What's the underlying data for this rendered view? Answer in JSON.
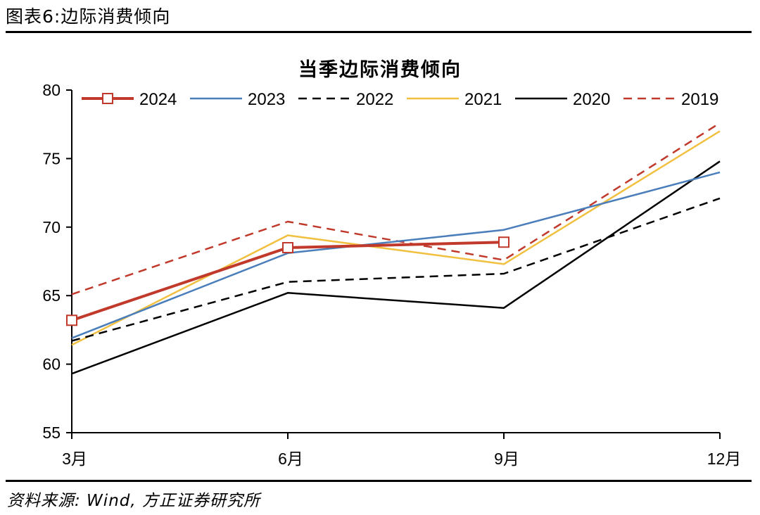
{
  "header": {
    "figure_label": "图表6:边际消费倾向"
  },
  "footer": {
    "source": "资料来源: Wind, 方正证券研究所"
  },
  "colors": {
    "c2024": "#c0392b",
    "c2023": "#4a7ebb",
    "c2022": "#000000",
    "c2021": "#f2c040",
    "c2020": "#000000",
    "c2019": "#c0392b"
  },
  "chart_data": {
    "type": "line",
    "title": "当季边际消费倾向",
    "categories": [
      "3月",
      "6月",
      "9月",
      "12月"
    ],
    "ylim": [
      55,
      80
    ],
    "yticks": [
      55,
      60,
      65,
      70,
      75,
      80
    ],
    "legend_position": "top",
    "grid": false,
    "series": [
      {
        "name": "2024",
        "values": [
          63.2,
          68.5,
          68.9,
          null
        ],
        "style": "solid",
        "marker": "square",
        "color_key": "c2024"
      },
      {
        "name": "2023",
        "values": [
          61.9,
          68.1,
          69.8,
          74.0
        ],
        "style": "solid",
        "marker": "none",
        "color_key": "c2023"
      },
      {
        "name": "2022",
        "values": [
          61.7,
          66.0,
          66.6,
          72.1
        ],
        "style": "dashed",
        "marker": "none",
        "color_key": "c2022"
      },
      {
        "name": "2021",
        "values": [
          61.4,
          69.4,
          67.3,
          77.0
        ],
        "style": "solid",
        "marker": "none",
        "color_key": "c2021"
      },
      {
        "name": "2020",
        "values": [
          59.3,
          65.2,
          64.1,
          74.8
        ],
        "style": "solid",
        "marker": "none",
        "color_key": "c2020"
      },
      {
        "name": "2019",
        "values": [
          65.1,
          70.4,
          67.6,
          77.6
        ],
        "style": "dashed",
        "marker": "none",
        "color_key": "c2019"
      }
    ]
  }
}
